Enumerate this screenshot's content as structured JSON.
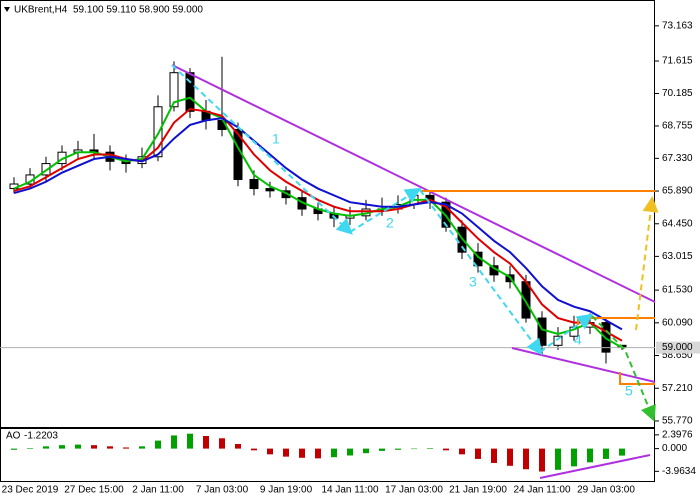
{
  "chart_data": [
    {
      "type": "candlestick",
      "title": "UKBrent,H4",
      "subtitle": "59.100 59.110 58.900 59.000",
      "categories": [
        null,
        "23 Dec 2019",
        null,
        null,
        null,
        "27 Dec 15:00",
        null,
        null,
        null,
        "2 Jan 11:00",
        null,
        null,
        null,
        "7 Jan 03:00",
        null,
        null,
        null,
        "9 Jan 19:00",
        null,
        null,
        null,
        "14 Jan 11:00",
        null,
        null,
        null,
        "17 Jan 03:00",
        null,
        null,
        null,
        "21 Jan 19:00",
        null,
        null,
        null,
        "24 Jan 11:00",
        null,
        null,
        null,
        "29 Jan 03:00",
        null
      ],
      "open": [
        66.0,
        66.2,
        66.6,
        67.1,
        67.6,
        67.7,
        67.6,
        67.2,
        67.1,
        67.4,
        69.6,
        71.1,
        69.4,
        69.0,
        68.6,
        66.4,
        66.0,
        65.9,
        65.6,
        65.1,
        64.9,
        64.7,
        64.8,
        65.1,
        65.1,
        65.3,
        65.7,
        65.4,
        64.3,
        63.2,
        62.6,
        62.2,
        61.9,
        60.3,
        59.1,
        59.5,
        59.9,
        60.1,
        59.1
      ],
      "high": [
        66.5,
        66.9,
        67.4,
        67.9,
        68.1,
        68.4,
        67.9,
        67.5,
        67.8,
        70.1,
        71.6,
        71.3,
        69.9,
        71.8,
        68.9,
        66.8,
        66.3,
        66.1,
        65.9,
        65.4,
        65.2,
        65.2,
        65.5,
        65.6,
        65.7,
        66.0,
        65.9,
        65.6,
        64.6,
        63.6,
        63.0,
        62.6,
        62.2,
        60.6,
        59.9,
        60.4,
        60.5,
        60.3,
        59.11
      ],
      "low": [
        65.8,
        66.0,
        66.3,
        66.8,
        67.3,
        67.3,
        66.8,
        66.7,
        66.9,
        67.2,
        69.4,
        69.1,
        68.6,
        68.3,
        66.1,
        65.7,
        65.6,
        65.3,
        64.8,
        64.6,
        64.3,
        64.4,
        64.6,
        64.8,
        64.9,
        65.1,
        65.1,
        64.1,
        62.9,
        62.3,
        61.9,
        61.6,
        60.1,
        58.7,
        58.9,
        59.3,
        59.6,
        58.3,
        58.9
      ],
      "close": [
        66.2,
        66.6,
        67.1,
        67.6,
        67.7,
        67.6,
        67.2,
        67.1,
        67.4,
        69.6,
        71.1,
        69.4,
        69.0,
        68.6,
        66.4,
        66.0,
        65.9,
        65.6,
        65.1,
        64.9,
        64.7,
        64.8,
        65.1,
        65.1,
        65.3,
        65.7,
        65.4,
        64.3,
        63.2,
        62.6,
        62.2,
        61.9,
        60.3,
        59.1,
        59.5,
        59.9,
        60.1,
        58.8,
        59.0
      ],
      "up_color": "#ffffff",
      "down_color": "#000000",
      "series": [
        {
          "color": "#00c000",
          "values": [
            66.0,
            66.3,
            66.8,
            67.3,
            67.6,
            67.6,
            67.4,
            67.2,
            67.3,
            68.4,
            69.8,
            70.0,
            69.4,
            69.1,
            67.8,
            66.6,
            66.1,
            65.8,
            65.4,
            65.1,
            64.9,
            64.8,
            64.9,
            65.1,
            65.2,
            65.5,
            65.5,
            64.8,
            63.8,
            63.0,
            62.5,
            62.1,
            61.0,
            59.8,
            59.6,
            59.8,
            60.1,
            59.4,
            59.0
          ]
        },
        {
          "color": "#e00000",
          "values": [
            65.9,
            66.1,
            66.5,
            66.9,
            67.3,
            67.5,
            67.5,
            67.3,
            67.2,
            67.8,
            68.9,
            69.5,
            69.4,
            69.2,
            68.4,
            67.5,
            66.8,
            66.3,
            65.9,
            65.5,
            65.2,
            65.0,
            65.0,
            65.0,
            65.1,
            65.3,
            65.5,
            65.2,
            64.5,
            63.8,
            63.2,
            62.7,
            61.9,
            60.9,
            60.3,
            60.1,
            60.1,
            59.7,
            59.3
          ]
        },
        {
          "color": "#1010d0",
          "values": [
            65.8,
            66.0,
            66.3,
            66.7,
            67.0,
            67.3,
            67.4,
            67.3,
            67.2,
            67.5,
            68.2,
            68.8,
            69.0,
            69.1,
            68.7,
            68.1,
            67.5,
            66.9,
            66.4,
            66.0,
            65.7,
            65.4,
            65.3,
            65.2,
            65.2,
            65.3,
            65.4,
            65.3,
            64.9,
            64.3,
            63.7,
            63.2,
            62.5,
            61.7,
            61.1,
            60.8,
            60.6,
            60.2,
            59.8
          ]
        }
      ],
      "ylim": [
        55.46,
        74.3
      ],
      "yticks": [
        73.163,
        71.615,
        70.185,
        68.755,
        {
          "value": 67.33,
          "label": "67.330"
        },
        {
          "value": 65.89,
          "label": "65.890"
        },
        {
          "value": 64.45,
          "label": "64.450"
        },
        63.015,
        {
          "value": 61.53,
          "label": "61.530"
        },
        {
          "value": 60.09,
          "label": "60.090"
        },
        {
          "value": 58.65,
          "label": "58.650"
        },
        {
          "value": 57.21,
          "label": "57.210"
        },
        {
          "value": 55.77,
          "label": "55.770"
        }
      ],
      "last_price": {
        "value": 59.0,
        "label": "59.000"
      },
      "wave_labels": [
        "1",
        "2",
        "3",
        "4",
        "5"
      ],
      "grid": false
    },
    {
      "type": "bar",
      "name": "AO",
      "values": [
        -0.2,
        0.1,
        0.4,
        0.6,
        0.7,
        0.6,
        0.4,
        0.2,
        0.4,
        1.4,
        2.3,
        2.6,
        2.2,
        1.8,
        0.8,
        -0.3,
        -1.0,
        -1.4,
        -1.6,
        -1.7,
        -1.5,
        -1.2,
        -0.8,
        -0.4,
        -0.2,
        0.0,
        0.1,
        -0.3,
        -1.0,
        -1.8,
        -2.5,
        -3.0,
        -3.6,
        -4.0,
        -3.7,
        -3.1,
        -2.4,
        -1.8,
        -1.2203
      ],
      "up_color": "#00a000",
      "down_color": "#c00000",
      "ylim": [
        -5.65,
        3.42
      ],
      "yticks": [
        2.3976,
        {
          "value": 0,
          "label": "0.000"
        },
        -3.9634
      ],
      "grid": false
    }
  ]
}
